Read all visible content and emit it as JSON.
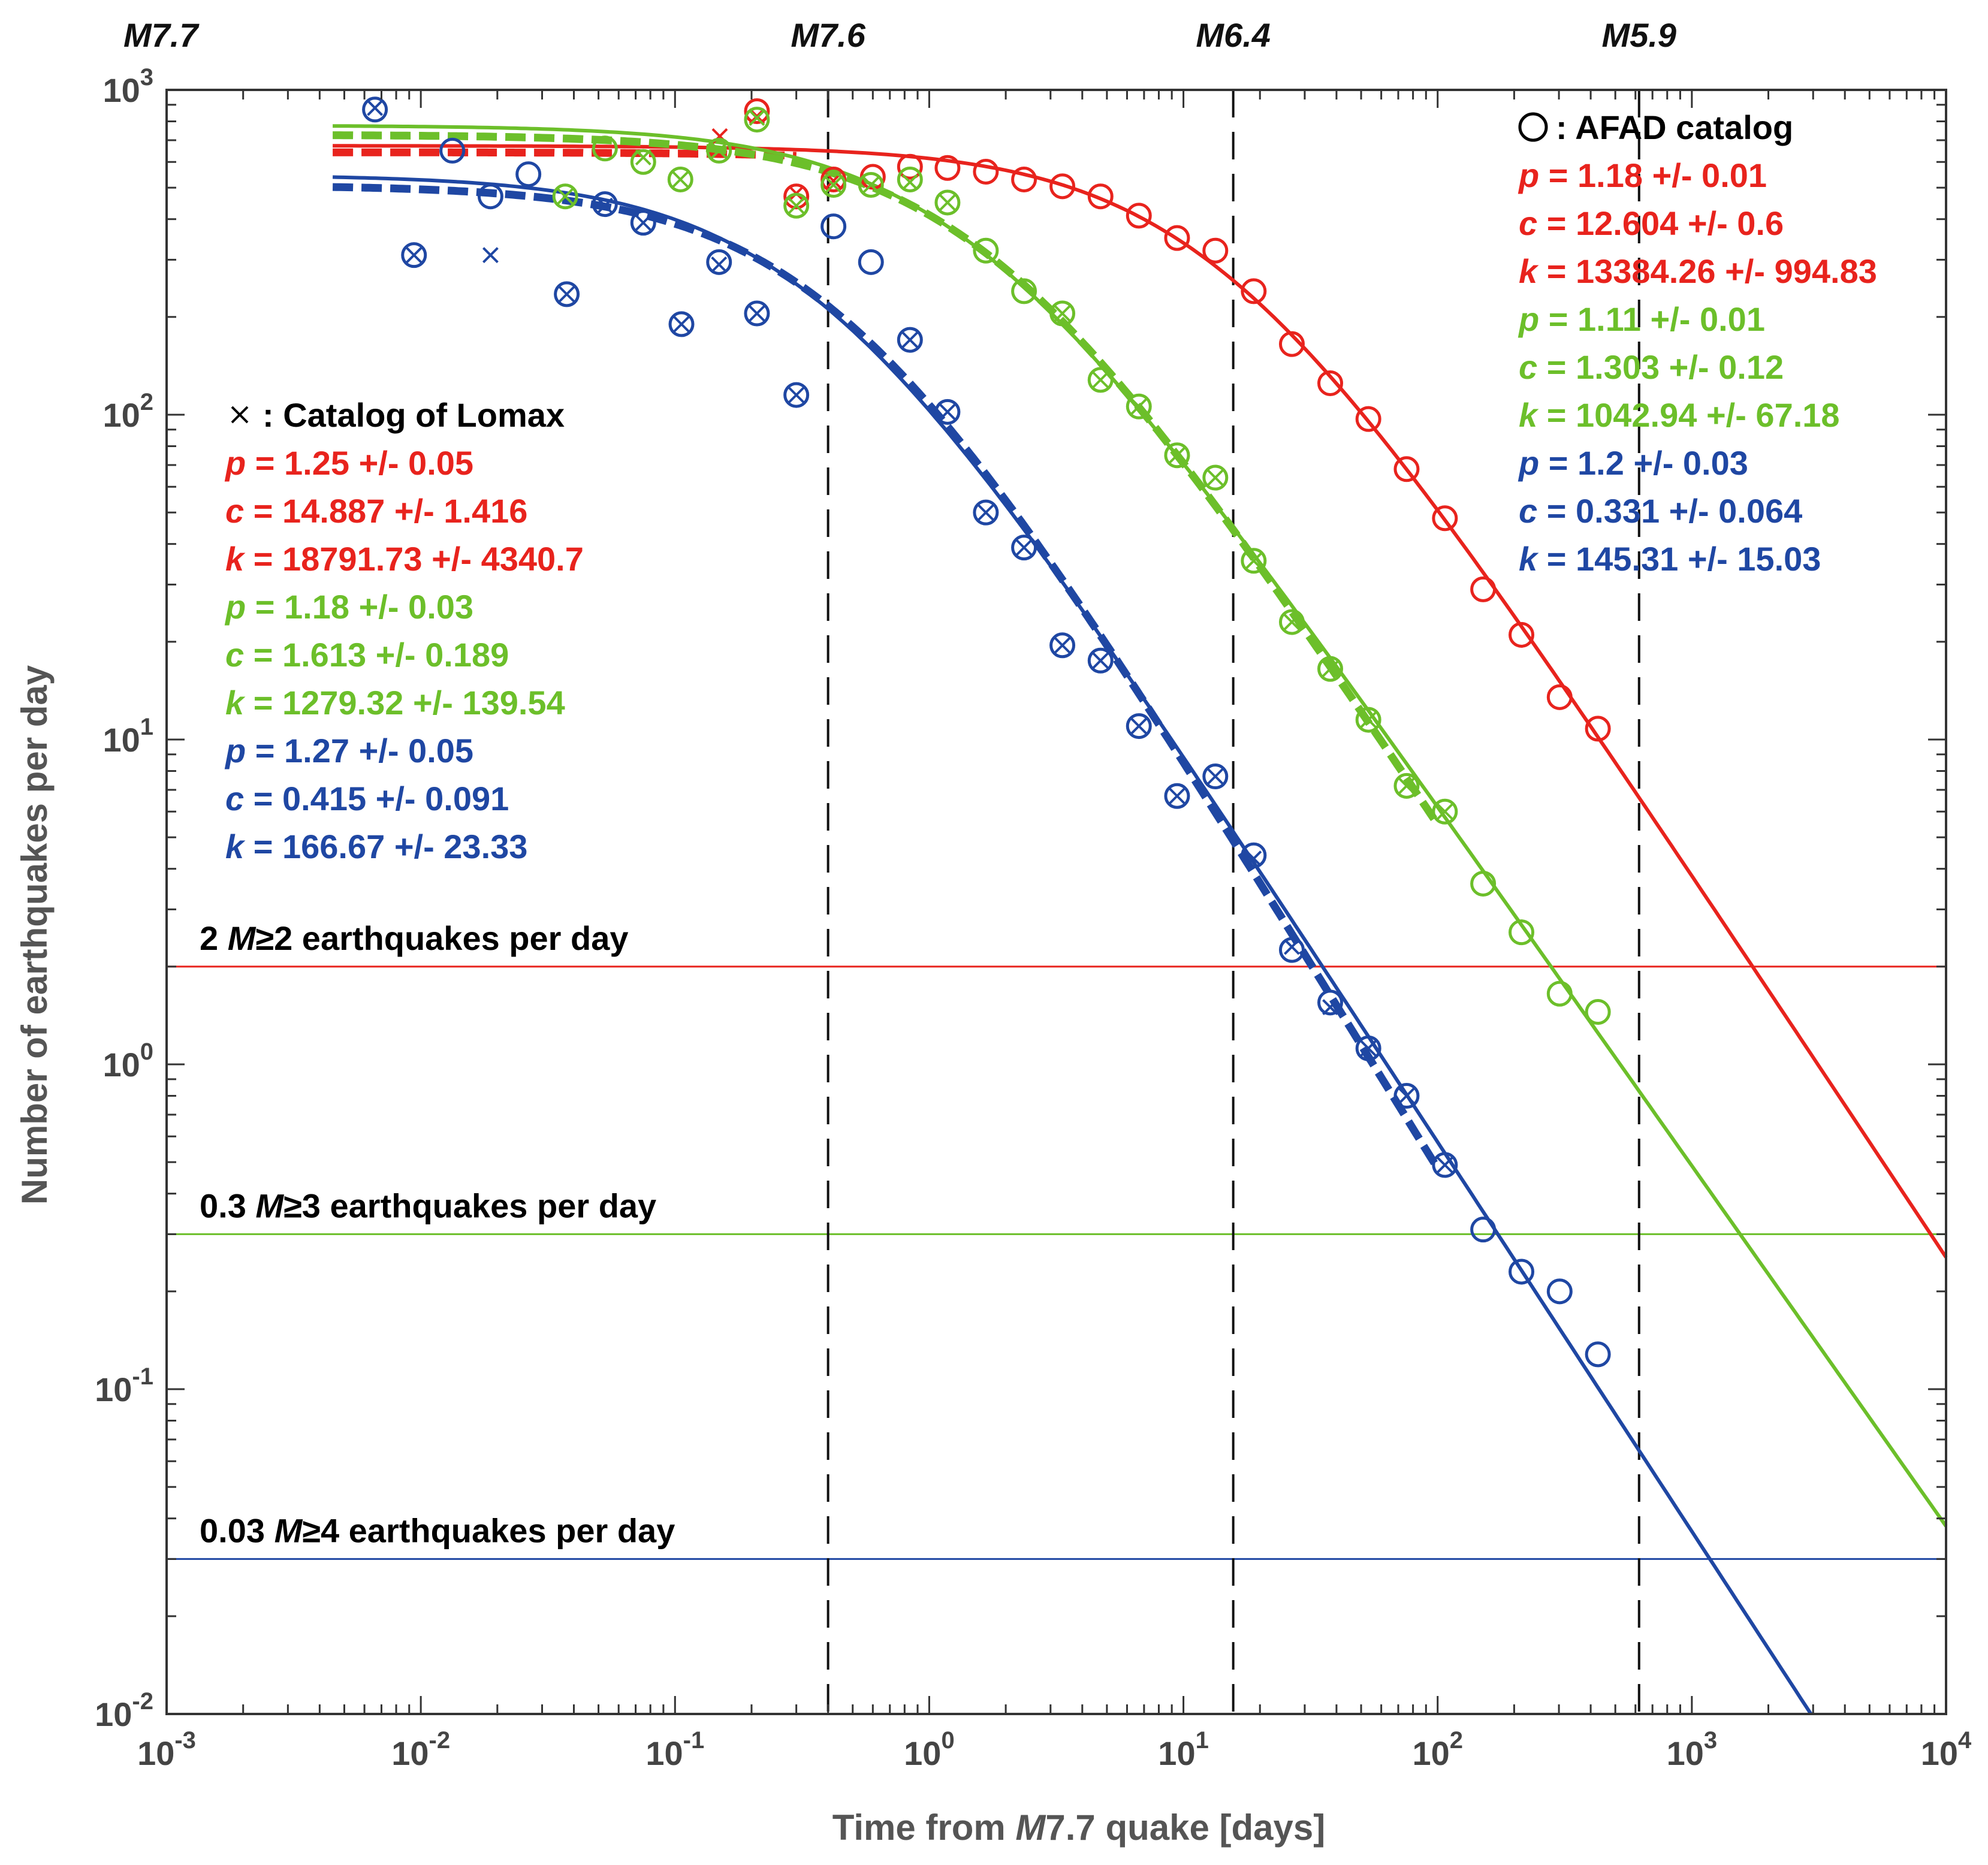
{
  "chart_data": {
    "type": "scatter",
    "title": "",
    "xlabel": "Time from M7.7 quake [days]",
    "ylabel": "Number of earthquakes per day",
    "xscale": "log",
    "yscale": "log",
    "xlim": [
      0.001,
      10000
    ],
    "ylim": [
      0.01,
      1000
    ],
    "x_ticks": [
      {
        "base": "10",
        "exp": "-3",
        "value": 0.001
      },
      {
        "base": "10",
        "exp": "-2",
        "value": 0.01
      },
      {
        "base": "10",
        "exp": "-1",
        "value": 0.1
      },
      {
        "base": "10",
        "exp": "0",
        "value": 1
      },
      {
        "base": "10",
        "exp": "1",
        "value": 10
      },
      {
        "base": "10",
        "exp": "2",
        "value": 100
      },
      {
        "base": "10",
        "exp": "3",
        "value": 1000
      },
      {
        "base": "10",
        "exp": "4",
        "value": 10000
      }
    ],
    "y_ticks": [
      {
        "base": "10",
        "exp": "-2",
        "value": 0.01
      },
      {
        "base": "10",
        "exp": "-1",
        "value": 0.1
      },
      {
        "base": "10",
        "exp": "0",
        "value": 1
      },
      {
        "base": "10",
        "exp": "1",
        "value": 10
      },
      {
        "base": "10",
        "exp": "2",
        "value": 100
      },
      {
        "base": "10",
        "exp": "3",
        "value": 1000
      }
    ],
    "colors": {
      "red": "#e8231d",
      "green": "#6cbf2a",
      "blue": "#1f47a3"
    },
    "event_markers": [
      {
        "label": "M7.7",
        "x": 0.001
      },
      {
        "label": "M7.6",
        "x": 0.4
      },
      {
        "label": "M6.4",
        "x": 15.7
      },
      {
        "label": "M5.9",
        "x": 620
      }
    ],
    "reference_lines": [
      {
        "y": 2,
        "color": "red",
        "label_pre": "2 ",
        "label_mag": "M",
        "label_post": "≥2 earthquakes per day"
      },
      {
        "y": 0.3,
        "color": "green",
        "label_pre": "0.3 ",
        "label_mag": "M",
        "label_post": "≥3 earthquakes per day"
      },
      {
        "y": 0.03,
        "color": "blue",
        "label_pre": "0.03 ",
        "label_mag": "M",
        "label_post": "≥4 earthquakes per day"
      }
    ],
    "legend_afad": {
      "title": ": AFAD catalog",
      "position": "top-right",
      "lines": [
        {
          "color": "red",
          "param": "p",
          "text": " = 1.18 +/- 0.01"
        },
        {
          "color": "red",
          "param": "c",
          "text": " = 12.604 +/- 0.6"
        },
        {
          "color": "red",
          "param": "k",
          "text": " = 13384.26 +/- 994.83"
        },
        {
          "color": "green",
          "param": "p",
          "text": " = 1.11 +/- 0.01"
        },
        {
          "color": "green",
          "param": "c",
          "text": " = 1.303 +/- 0.12"
        },
        {
          "color": "green",
          "param": "k",
          "text": " = 1042.94 +/- 67.18"
        },
        {
          "color": "blue",
          "param": "p",
          "text": " = 1.2 +/- 0.03"
        },
        {
          "color": "blue",
          "param": "c",
          "text": " = 0.331 +/- 0.064"
        },
        {
          "color": "blue",
          "param": "k",
          "text": " = 145.31 +/- 15.03"
        }
      ]
    },
    "legend_lomax": {
      "title": ": Catalog of Lomax",
      "position": "center-left",
      "lines": [
        {
          "color": "red",
          "param": "p",
          "text": " = 1.25 +/- 0.05"
        },
        {
          "color": "red",
          "param": "c",
          "text": " = 14.887 +/- 1.416"
        },
        {
          "color": "red",
          "param": "k",
          "text": " = 18791.73 +/- 4340.7"
        },
        {
          "color": "green",
          "param": "p",
          "text": " = 1.18 +/- 0.03"
        },
        {
          "color": "green",
          "param": "c",
          "text": " = 1.613 +/- 0.189"
        },
        {
          "color": "green",
          "param": "k",
          "text": " = 1279.32 +/- 139.54"
        },
        {
          "color": "blue",
          "param": "p",
          "text": " = 1.27 +/- 0.05"
        },
        {
          "color": "blue",
          "param": "c",
          "text": " = 0.415 +/- 0.091"
        },
        {
          "color": "blue",
          "param": "k",
          "text": " = 166.67 +/- 23.33"
        }
      ]
    },
    "series": [
      {
        "name": "AFAD red (M>=2)",
        "color": "red",
        "fit": {
          "p": 1.18,
          "c": 12.604,
          "k": 13384.26,
          "t_min": 0.0045,
          "t_max": 10000
        },
        "fit_lomax": {
          "p": 1.25,
          "c": 14.887,
          "k": 18791.73,
          "t_min": 0.0045,
          "t_max": 0.3
        },
        "points": [
          [
            0.21,
            860
          ],
          [
            0.3,
            470
          ],
          [
            0.42,
            530
          ],
          [
            0.6,
            540
          ],
          [
            0.84,
            580
          ],
          [
            1.18,
            575
          ],
          [
            1.67,
            560
          ],
          [
            2.36,
            530
          ],
          [
            3.34,
            505
          ],
          [
            4.72,
            470
          ],
          [
            6.68,
            410
          ],
          [
            9.44,
            350
          ],
          [
            13.35,
            320
          ],
          [
            18.9,
            240
          ],
          [
            26.7,
            165
          ],
          [
            37.8,
            125
          ],
          [
            53.4,
            97
          ],
          [
            75.5,
            68
          ],
          [
            106.8,
            48
          ],
          [
            151,
            29
          ],
          [
            213.6,
            21
          ],
          [
            302,
            13.5
          ],
          [
            427,
            10.8
          ]
        ],
        "lomax_points": [
          [
            0.15,
            720
          ],
          [
            0.21,
            830
          ],
          [
            0.3,
            480
          ],
          [
            0.42,
            525
          ]
        ]
      },
      {
        "name": "AFAD green (M>=3)",
        "color": "green",
        "fit": {
          "p": 1.11,
          "c": 1.303,
          "k": 1042.94,
          "t_min": 0.0045,
          "t_max": 10000
        },
        "fit_lomax": {
          "p": 1.18,
          "c": 1.613,
          "k": 1279.32,
          "t_min": 0.0045,
          "t_max": 100
        },
        "points": [
          [
            0.037,
            470
          ],
          [
            0.053,
            660
          ],
          [
            0.075,
            600
          ],
          [
            0.105,
            530
          ],
          [
            0.149,
            650
          ],
          [
            0.21,
            810
          ],
          [
            0.3,
            440
          ],
          [
            0.42,
            510
          ],
          [
            0.59,
            510
          ],
          [
            0.84,
            530
          ],
          [
            1.18,
            450
          ],
          [
            1.67,
            320
          ],
          [
            2.36,
            240
          ],
          [
            3.34,
            205
          ],
          [
            4.72,
            128
          ],
          [
            6.68,
            106
          ],
          [
            9.44,
            75
          ],
          [
            13.35,
            64
          ],
          [
            18.9,
            35.5
          ],
          [
            26.7,
            23
          ],
          [
            37.8,
            16.5
          ],
          [
            53.4,
            11.5
          ],
          [
            75.5,
            7.2
          ],
          [
            106.8,
            6
          ],
          [
            151,
            3.6
          ],
          [
            213.6,
            2.55
          ],
          [
            302,
            1.65
          ],
          [
            427,
            1.45
          ]
        ],
        "lomax_points": [
          [
            0.037,
            470
          ],
          [
            0.075,
            620
          ],
          [
            0.105,
            530
          ],
          [
            0.149,
            650
          ],
          [
            0.21,
            820
          ],
          [
            0.3,
            440
          ],
          [
            0.42,
            510
          ],
          [
            0.59,
            510
          ],
          [
            0.84,
            520
          ],
          [
            1.18,
            450
          ],
          [
            3.34,
            205
          ],
          [
            4.72,
            128
          ],
          [
            6.68,
            106
          ],
          [
            9.44,
            75
          ],
          [
            13.35,
            64
          ],
          [
            18.9,
            35.5
          ],
          [
            26.7,
            23
          ],
          [
            37.8,
            16.5
          ],
          [
            53.4,
            11.5
          ],
          [
            75.5,
            7.2
          ],
          [
            106.8,
            6
          ]
        ]
      },
      {
        "name": "AFAD blue (M>=4)",
        "color": "blue",
        "fit": {
          "p": 1.2,
          "c": 0.331,
          "k": 145.31,
          "t_min": 0.0045,
          "t_max": 10000
        },
        "fit_lomax": {
          "p": 1.27,
          "c": 0.415,
          "k": 166.67,
          "t_min": 0.0045,
          "t_max": 100
        },
        "points": [
          [
            0.0066,
            870
          ],
          [
            0.0094,
            310
          ],
          [
            0.0133,
            650
          ],
          [
            0.0188,
            470
          ],
          [
            0.0265,
            550
          ],
          [
            0.0375,
            235
          ],
          [
            0.053,
            445
          ],
          [
            0.075,
            390
          ],
          [
            0.106,
            190
          ],
          [
            0.149,
            295
          ],
          [
            0.21,
            205
          ],
          [
            0.3,
            115
          ],
          [
            0.42,
            380
          ],
          [
            0.59,
            295
          ],
          [
            0.84,
            170
          ],
          [
            1.18,
            102
          ],
          [
            1.67,
            50
          ],
          [
            2.36,
            39
          ],
          [
            3.34,
            19.5
          ],
          [
            4.72,
            17.5
          ],
          [
            6.68,
            11
          ],
          [
            9.44,
            6.7
          ],
          [
            13.35,
            7.7
          ],
          [
            18.9,
            4.4
          ],
          [
            26.7,
            2.25
          ],
          [
            37.8,
            1.55
          ],
          [
            53.4,
            1.12
          ],
          [
            75.5,
            0.8
          ],
          [
            106.8,
            0.49
          ],
          [
            151,
            0.31
          ],
          [
            213.6,
            0.23
          ],
          [
            302,
            0.2
          ],
          [
            427,
            0.128
          ]
        ],
        "lomax_points": [
          [
            0.0066,
            880
          ],
          [
            0.0094,
            310
          ],
          [
            0.0188,
            310
          ],
          [
            0.0375,
            235
          ],
          [
            0.053,
            440
          ],
          [
            0.075,
            390
          ],
          [
            0.106,
            190
          ],
          [
            0.149,
            290
          ],
          [
            0.21,
            205
          ],
          [
            0.3,
            115
          ],
          [
            0.84,
            170
          ],
          [
            1.18,
            102
          ],
          [
            1.67,
            50
          ],
          [
            2.36,
            39
          ],
          [
            3.34,
            19.5
          ],
          [
            4.72,
            17.5
          ],
          [
            6.68,
            11
          ],
          [
            9.44,
            6.7
          ],
          [
            13.35,
            7.7
          ],
          [
            18.9,
            4.3
          ],
          [
            26.7,
            2.3
          ],
          [
            37.8,
            1.5
          ],
          [
            53.4,
            1.12
          ],
          [
            75.5,
            0.8
          ],
          [
            106.8,
            0.49
          ]
        ]
      }
    ]
  }
}
